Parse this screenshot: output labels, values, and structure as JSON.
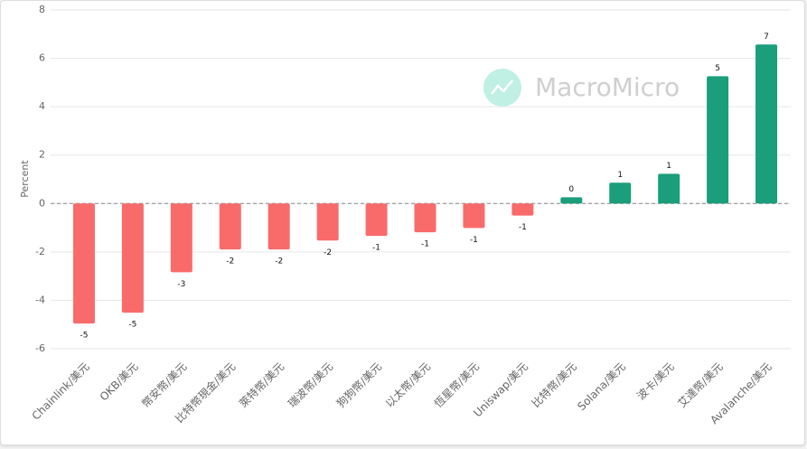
{
  "chart_data": {
    "type": "bar",
    "watermark": "MacroMicro",
    "y_label": "Percent",
    "categories": [
      "Chainlink/美元",
      "OKB/美元",
      "幣安幣/美元",
      "比特幣現金/美元",
      "萊特幣/美元",
      "瑞波幣/美元",
      "狗狗幣/美元",
      "以太幣/美元",
      "恆星幣/美元",
      "Uniswap/美元",
      "比特幣/美元",
      "Solana/美元",
      "波卡/美元",
      "艾達幣/美元",
      "Avalanche/美元"
    ],
    "values": [
      -4.96,
      -4.51,
      -2.84,
      -1.9,
      -1.9,
      -1.53,
      -1.34,
      -1.19,
      -1.01,
      -0.5,
      0.26,
      0.86,
      1.23,
      5.26,
      6.57
    ],
    "value_labels": [
      "-5",
      "-5",
      "-3",
      "-2",
      "-2",
      "-2",
      "-1",
      "-1",
      "-1",
      "-1",
      "0",
      "1",
      "1",
      "5",
      "7"
    ],
    "positive_color": "#1a9e7b",
    "negative_color": "#f96b6b",
    "ylim": [
      -6,
      8
    ],
    "yticks": [
      -6,
      -4,
      -2,
      0,
      2,
      4,
      6,
      8
    ],
    "grid": true
  }
}
